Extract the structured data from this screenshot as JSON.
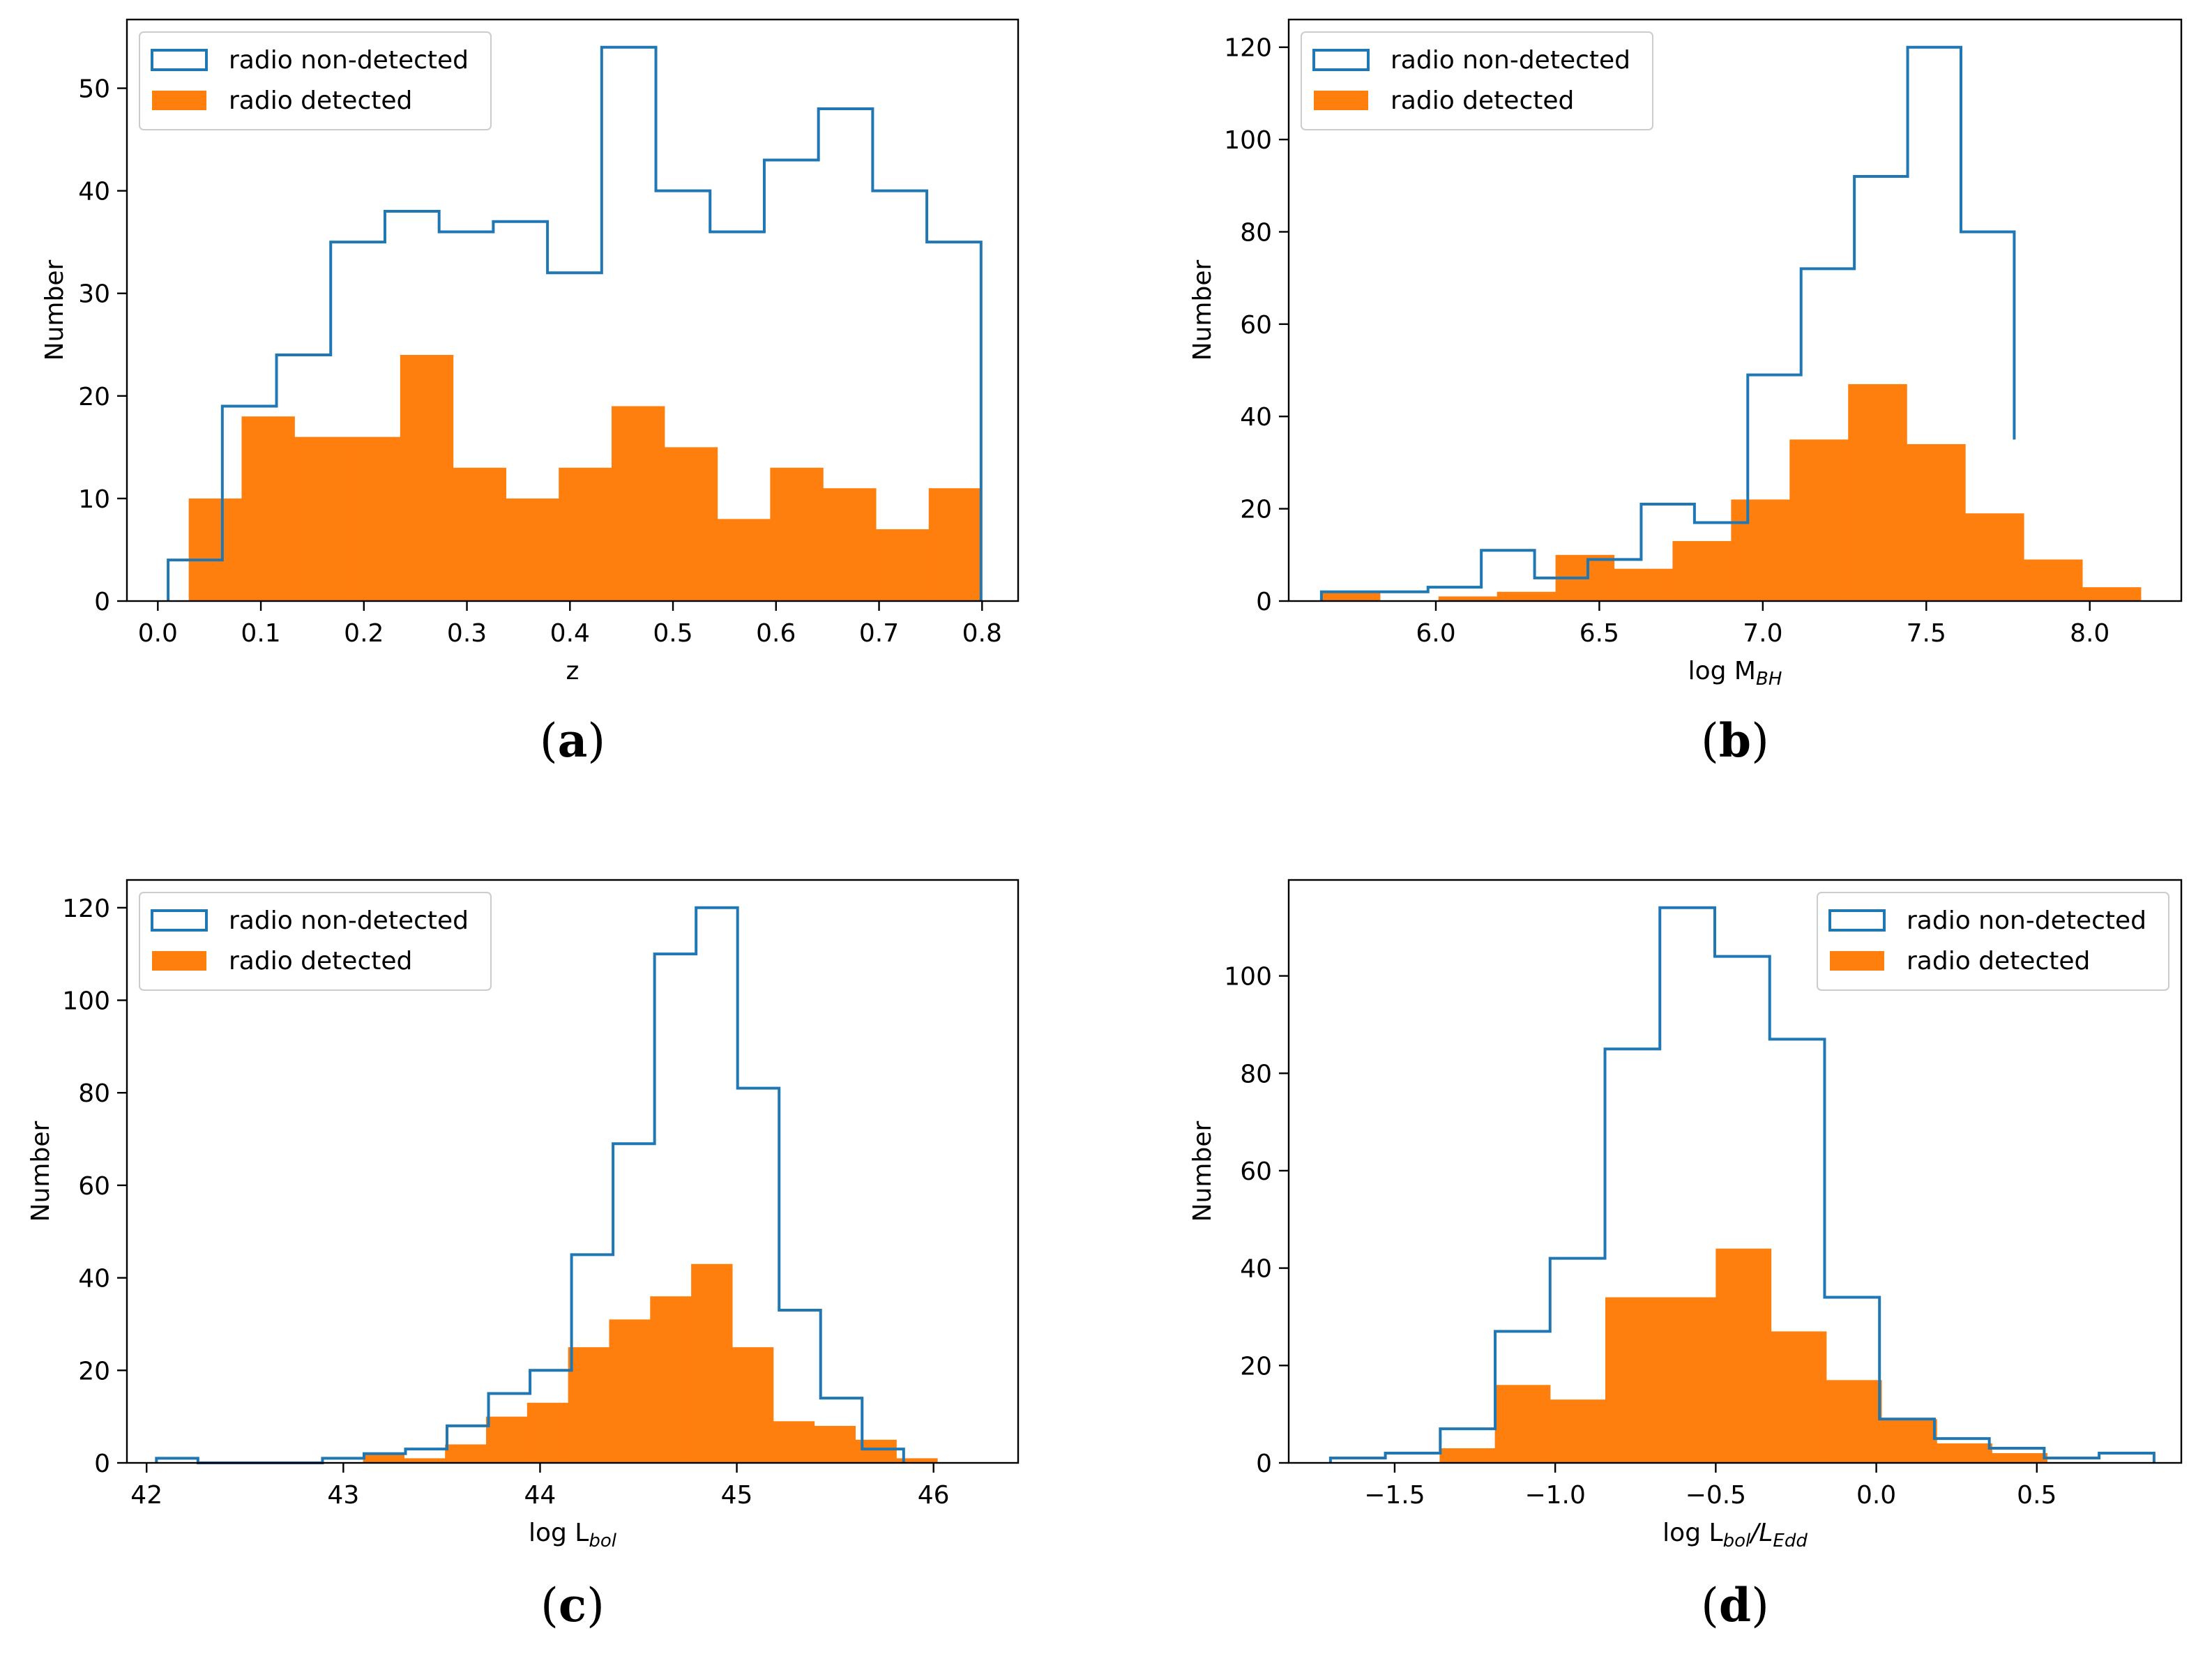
{
  "colors": {
    "nondetected": "#1f77b4",
    "detected": "#ff7f0e",
    "axis": "#000000",
    "legend_border": "#cccccc"
  },
  "chart_data": [
    {
      "type": "bar",
      "panel_label": "(a)",
      "title": "",
      "xlabel": {
        "main": "z",
        "sub": ""
      },
      "ylabel": "Number",
      "xlim": [
        -0.03,
        0.835
      ],
      "ylim": [
        0,
        56.7
      ],
      "xticks": [
        0.0,
        0.1,
        0.2,
        0.3,
        0.4,
        0.5,
        0.6,
        0.7,
        0.8
      ],
      "xtick_labels": [
        "0.0",
        "0.1",
        "0.2",
        "0.3",
        "0.4",
        "0.5",
        "0.6",
        "0.7",
        "0.8"
      ],
      "yticks": [
        0,
        10,
        20,
        30,
        40,
        50
      ],
      "ytick_labels": [
        "0",
        "10",
        "20",
        "30",
        "40",
        "50"
      ],
      "legend": {
        "placement": "top-left",
        "entries": [
          "radio non-detected",
          "radio detected"
        ]
      },
      "series": [
        {
          "name": "radio non-detected",
          "style": "step",
          "edges": [
            0.01,
            0.0626,
            0.1152,
            0.1678,
            0.2204,
            0.273,
            0.3256,
            0.3782,
            0.4308,
            0.4834,
            0.536,
            0.5886,
            0.6412,
            0.6938,
            0.7464,
            0.799
          ],
          "values": [
            4,
            19,
            24,
            35,
            38,
            36,
            37,
            32,
            54,
            40,
            36,
            43,
            48,
            40,
            35
          ]
        },
        {
          "name": "radio detected",
          "style": "filled",
          "edges": [
            0.03,
            0.0813,
            0.1326,
            0.1839,
            0.2352,
            0.2865,
            0.3378,
            0.3891,
            0.4404,
            0.4917,
            0.543,
            0.5943,
            0.6456,
            0.6969,
            0.7482,
            0.7995
          ],
          "values": [
            10,
            18,
            16,
            16,
            24,
            13,
            10,
            13,
            19,
            15,
            8,
            13,
            11,
            7,
            11
          ]
        }
      ]
    },
    {
      "type": "bar",
      "panel_label": "(b)",
      "title": "",
      "xlabel": {
        "main": "log M",
        "sub": "BH"
      },
      "ylabel": "Number",
      "xlim": [
        5.55,
        8.28
      ],
      "ylim": [
        0,
        126
      ],
      "xticks": [
        6.0,
        6.5,
        7.0,
        7.5,
        8.0
      ],
      "xtick_labels": [
        "6.0",
        "6.5",
        "7.0",
        "7.5",
        "8.0"
      ],
      "yticks": [
        0,
        20,
        40,
        60,
        80,
        100,
        120
      ],
      "ytick_labels": [
        "0",
        "20",
        "40",
        "60",
        "80",
        "100",
        "120"
      ],
      "legend": {
        "placement": "top-left",
        "entries": [
          "radio non-detected",
          "radio detected"
        ]
      },
      "series": [
        {
          "name": "radio non-detected",
          "style": "step",
          "edges": [
            5.65,
            5.813,
            5.976,
            6.139,
            6.302,
            6.465,
            6.628,
            6.791,
            6.954,
            7.117,
            7.28,
            7.443,
            7.606,
            7.769
          ],
          "values": [
            2,
            2,
            3,
            11,
            5,
            9,
            21,
            17,
            49,
            72,
            92,
            120,
            80,
            35
          ]
        },
        {
          "name": "radio detected",
          "style": "filled",
          "edges": [
            5.65,
            5.829,
            6.008,
            6.187,
            6.366,
            6.545,
            6.724,
            6.903,
            7.082,
            7.261,
            7.44,
            7.619,
            7.798,
            7.977,
            8.156
          ],
          "values": [
            2,
            0,
            1,
            2,
            10,
            7,
            13,
            22,
            35,
            47,
            34,
            19,
            9,
            3
          ]
        }
      ]
    },
    {
      "type": "bar",
      "panel_label": "(c)",
      "title": "",
      "xlabel": {
        "main": "log L",
        "sub": "bol"
      },
      "ylabel": "Number",
      "xlim": [
        41.9,
        46.43
      ],
      "ylim": [
        0,
        126
      ],
      "xticks": [
        42,
        43,
        44,
        45,
        46
      ],
      "xtick_labels": [
        "42",
        "43",
        "44",
        "45",
        "46"
      ],
      "yticks": [
        0,
        20,
        40,
        60,
        80,
        100,
        120
      ],
      "ytick_labels": [
        "0",
        "20",
        "40",
        "60",
        "80",
        "100",
        "120"
      ],
      "legend": {
        "placement": "top-left",
        "entries": [
          "radio non-detected",
          "radio detected"
        ]
      },
      "series": [
        {
          "name": "radio non-detected",
          "style": "step",
          "edges": [
            42.05,
            42.261,
            42.472,
            42.683,
            42.894,
            43.105,
            43.316,
            43.527,
            43.738,
            43.949,
            44.16,
            44.371,
            44.582,
            44.793,
            45.004,
            45.215,
            45.426,
            45.637,
            45.848
          ],
          "values": [
            1,
            0,
            0,
            0,
            1,
            2,
            3,
            8,
            15,
            20,
            45,
            69,
            110,
            120,
            81,
            33,
            14,
            3
          ]
        },
        {
          "name": "radio detected",
          "style": "filled",
          "edges": [
            43.1,
            43.3085,
            43.517,
            43.7255,
            43.934,
            44.1425,
            44.351,
            44.5595,
            44.768,
            44.9765,
            45.185,
            45.3935,
            45.602,
            45.8105,
            46.019,
            46.2275
          ],
          "values": [
            2,
            1,
            4,
            10,
            13,
            25,
            31,
            36,
            43,
            25,
            9,
            8,
            5,
            1,
            0
          ]
        }
      ]
    },
    {
      "type": "bar",
      "panel_label": "(d)",
      "title": "",
      "xlabel": {
        "main": "log L",
        "sub": "bol",
        "main2": "/L",
        "sub2": "Edd"
      },
      "ylabel": "Number",
      "xlim": [
        -1.83,
        0.95
      ],
      "ylim": [
        0,
        119.7
      ],
      "xticks": [
        -1.5,
        -1.0,
        -0.5,
        0.0,
        0.5
      ],
      "xtick_labels": [
        "−1.5",
        "−1.0",
        "−0.5",
        "0.0",
        "0.5"
      ],
      "yticks": [
        0,
        20,
        40,
        60,
        80,
        100
      ],
      "ytick_labels": [
        "0",
        "20",
        "40",
        "60",
        "80",
        "100"
      ],
      "legend": {
        "placement": "top-right",
        "entries": [
          "radio non-detected",
          "radio detected"
        ]
      },
      "series": [
        {
          "name": "radio non-detected",
          "style": "step",
          "edges": [
            -1.7,
            -1.529,
            -1.358,
            -1.187,
            -1.016,
            -0.845,
            -0.674,
            -0.503,
            -0.332,
            -0.161,
            0.01,
            0.181,
            0.352,
            0.523,
            0.694,
            0.865
          ],
          "values": [
            1,
            2,
            7,
            27,
            42,
            85,
            114,
            104,
            87,
            34,
            9,
            5,
            3,
            1,
            2
          ]
        },
        {
          "name": "radio detected",
          "style": "filled",
          "edges": [
            -1.36,
            -1.188,
            -1.016,
            -0.844,
            -0.672,
            -0.5,
            -0.328,
            -0.156,
            0.016,
            0.188,
            0.36,
            0.532
          ],
          "values": [
            3,
            16,
            13,
            34,
            34,
            44,
            27,
            17,
            9,
            4,
            2
          ]
        }
      ]
    }
  ]
}
